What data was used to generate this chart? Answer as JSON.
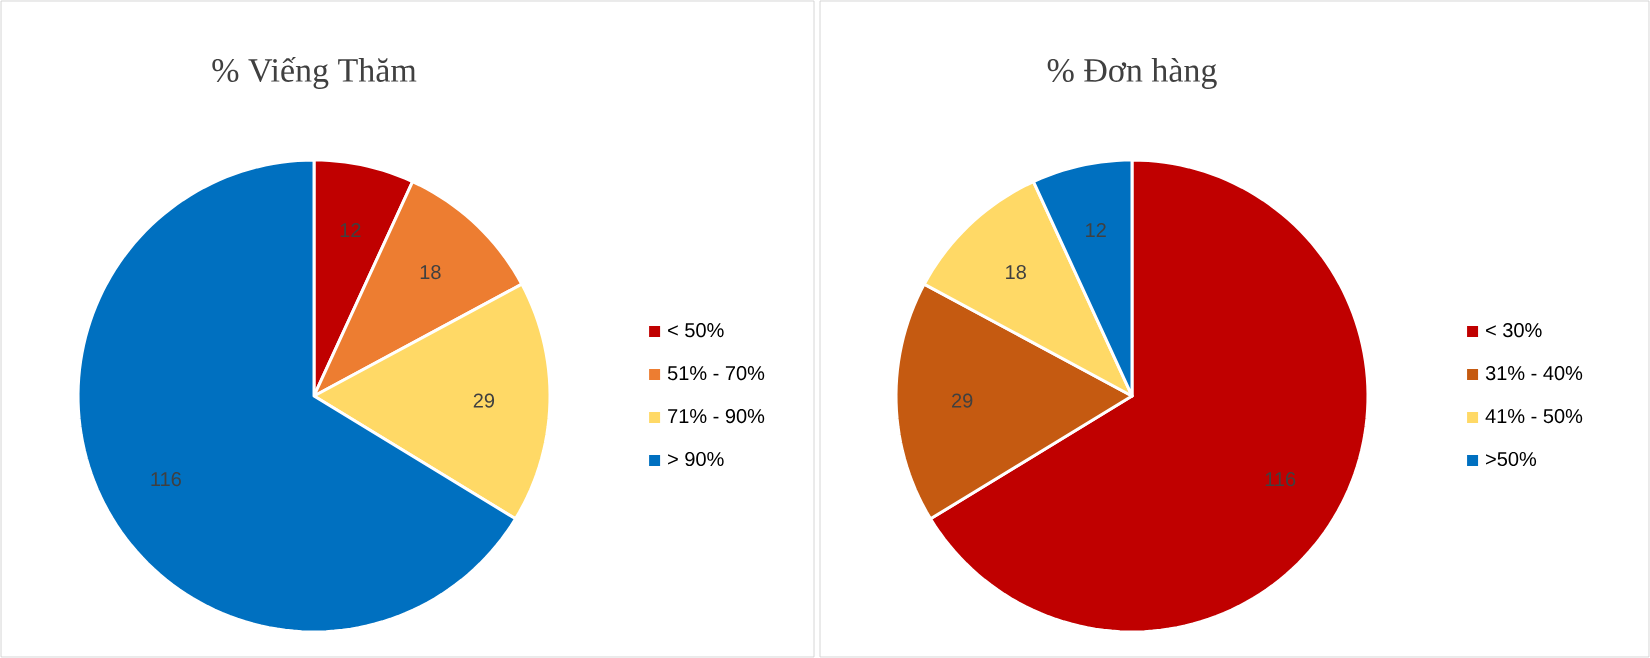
{
  "chart_data": [
    {
      "type": "pie",
      "title": "% Viếng Thăm",
      "categories": [
        "< 50%",
        "51% - 70%",
        "71% - 90%",
        "> 90%"
      ],
      "values": [
        12,
        18,
        29,
        116
      ],
      "colors": [
        "#c00000",
        "#ed7d31",
        "#ffd966",
        "#0070c0"
      ],
      "data_labels": true,
      "legend": "right"
    },
    {
      "type": "pie",
      "title": "% Đơn hàng",
      "categories": [
        "< 30%",
        "31% - 40%",
        "41% - 50%",
        ">50%"
      ],
      "values": [
        116,
        29,
        18,
        12
      ],
      "colors": [
        "#c00000",
        "#c55a11",
        "#ffd966",
        "#0070c0"
      ],
      "data_labels": true,
      "legend": "right"
    }
  ]
}
